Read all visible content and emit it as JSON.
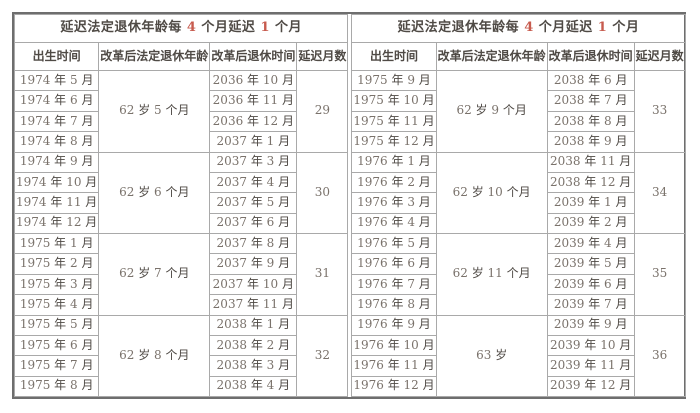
{
  "colors": {
    "text": "#4f4a45",
    "digit": "#7a726b",
    "red_digit": "#c75b4e",
    "border_outer": "#6e6e6e",
    "border_inner": "#a9a9a9",
    "background": "#ffffff"
  },
  "tables": [
    {
      "title_parts": [
        {
          "t": "延迟法定退休年龄每 ",
          "red": false
        },
        {
          "t": "4",
          "red": true
        },
        {
          "t": " 个月延迟 ",
          "red": false
        },
        {
          "t": "1",
          "red": true
        },
        {
          "t": " 个月",
          "red": false
        }
      ],
      "headers": [
        "出生时间",
        "改革后法定退休年龄",
        "改革后退休时间",
        "延迟月数"
      ],
      "groups": [
        {
          "age": "62 岁 5 个月",
          "delay": "29",
          "rows": [
            {
              "birth": "1974 年 5 月",
              "retire": "2036 年 10 月"
            },
            {
              "birth": "1974 年 6 月",
              "retire": "2036 年 11 月"
            },
            {
              "birth": "1974 年 7 月",
              "retire": "2036 年 12 月"
            },
            {
              "birth": "1974 年 8 月",
              "retire": "2037 年 1 月"
            }
          ]
        },
        {
          "age": "62 岁 6 个月",
          "delay": "30",
          "rows": [
            {
              "birth": "1974 年 9 月",
              "retire": "2037 年 3 月"
            },
            {
              "birth": "1974 年 10 月",
              "retire": "2037 年 4 月"
            },
            {
              "birth": "1974 年 11 月",
              "retire": "2037 年 5 月"
            },
            {
              "birth": "1974 年 12 月",
              "retire": "2037 年 6 月"
            }
          ]
        },
        {
          "age": "62 岁 7 个月",
          "delay": "31",
          "rows": [
            {
              "birth": "1975 年 1 月",
              "retire": "2037 年 8 月"
            },
            {
              "birth": "1975 年 2 月",
              "retire": "2037 年 9 月"
            },
            {
              "birth": "1975 年 3 月",
              "retire": "2037 年 10 月"
            },
            {
              "birth": "1975 年 4 月",
              "retire": "2037 年 11 月"
            }
          ]
        },
        {
          "age": "62 岁 8 个月",
          "delay": "32",
          "rows": [
            {
              "birth": "1975 年 5 月",
              "retire": "2038 年 1 月"
            },
            {
              "birth": "1975 年 6 月",
              "retire": "2038 年 2 月"
            },
            {
              "birth": "1975 年 7 月",
              "retire": "2038 年 3 月"
            },
            {
              "birth": "1975 年 8 月",
              "retire": "2038 年 4 月"
            }
          ]
        }
      ]
    },
    {
      "title_parts": [
        {
          "t": "延迟法定退休年龄每 ",
          "red": false
        },
        {
          "t": "4",
          "red": true
        },
        {
          "t": " 个月延迟 ",
          "red": false
        },
        {
          "t": "1",
          "red": true
        },
        {
          "t": " 个月",
          "red": false
        }
      ],
      "headers": [
        "出生时间",
        "改革后法定退休年龄",
        "改革后退休时间",
        "延迟月数"
      ],
      "groups": [
        {
          "age": "62 岁 9 个月",
          "delay": "33",
          "rows": [
            {
              "birth": "1975 年 9 月",
              "retire": "2038 年 6 月"
            },
            {
              "birth": "1975 年 10 月",
              "retire": "2038 年 7 月"
            },
            {
              "birth": "1975 年 11 月",
              "retire": "2038 年 8 月"
            },
            {
              "birth": "1975 年 12 月",
              "retire": "2038 年 9 月"
            }
          ]
        },
        {
          "age": "62 岁 10 个月",
          "delay": "34",
          "rows": [
            {
              "birth": "1976 年 1 月",
              "retire": "2038 年 11 月"
            },
            {
              "birth": "1976 年 2 月",
              "retire": "2038 年 12 月"
            },
            {
              "birth": "1976 年 3 月",
              "retire": "2039 年 1 月"
            },
            {
              "birth": "1976 年 4 月",
              "retire": "2039 年 2 月"
            }
          ]
        },
        {
          "age": "62 岁 11 个月",
          "delay": "35",
          "rows": [
            {
              "birth": "1976 年 5 月",
              "retire": "2039 年 4 月"
            },
            {
              "birth": "1976 年 6 月",
              "retire": "2039 年 5 月"
            },
            {
              "birth": "1976 年 7 月",
              "retire": "2039 年 6 月"
            },
            {
              "birth": "1976 年 8 月",
              "retire": "2039 年 7 月"
            }
          ]
        },
        {
          "age": "63 岁",
          "delay": "36",
          "rows": [
            {
              "birth": "1976 年 9 月",
              "retire": "2039 年 9 月"
            },
            {
              "birth": "1976 年 10 月",
              "retire": "2039 年 10 月"
            },
            {
              "birth": "1976 年 11 月",
              "retire": "2039 年 11 月"
            },
            {
              "birth": "1976 年 12 月",
              "retire": "2039 年 12 月"
            }
          ]
        }
      ]
    }
  ]
}
